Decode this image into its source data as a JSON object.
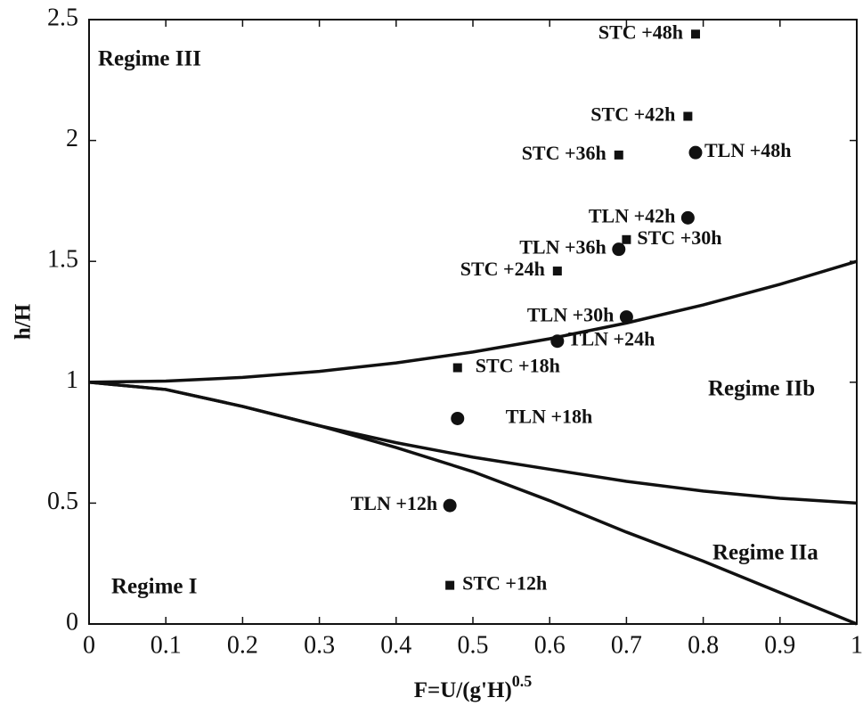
{
  "chart_data": {
    "type": "scatter",
    "xlabel": {
      "text": "F=U/(g'H)",
      "sup": "0.5"
    },
    "ylabel": "h/H",
    "xlim": [
      0,
      1
    ],
    "ylim": [
      0,
      2.5
    ],
    "xticks": [
      0,
      0.1,
      0.2,
      0.3,
      0.4,
      0.5,
      0.6,
      0.7,
      0.8,
      0.9,
      1
    ],
    "yticks": [
      0,
      0.5,
      1,
      1.5,
      2,
      2.5
    ],
    "series": [
      {
        "marker": "square",
        "color": "#111111",
        "x": [
          0.47,
          0.48,
          0.61,
          0.7,
          0.69,
          0.78,
          0.79
        ],
        "values": [
          0.16,
          1.06,
          1.46,
          1.59,
          1.94,
          2.1,
          2.44
        ],
        "labels": [
          "STC +12h",
          "STC +18h",
          "STC +24h",
          "STC +30h",
          "STC +36h",
          "STC +42h",
          "STC +48h"
        ]
      },
      {
        "marker": "circle",
        "color": "#111111",
        "x": [
          0.47,
          0.48,
          0.61,
          0.7,
          0.69,
          0.78,
          0.79
        ],
        "values": [
          0.49,
          0.85,
          1.17,
          1.27,
          1.55,
          1.68,
          1.95
        ],
        "labels": [
          "TLN +12h",
          "TLN +18h",
          "TLN +24h",
          "TLN +30h",
          "TLN +36h",
          "TLN +42h",
          "TLN +48h"
        ]
      }
    ],
    "curves": [
      {
        "color": "#111111",
        "x": [
          0,
          0.1,
          0.2,
          0.3,
          0.4,
          0.5,
          0.6,
          0.7,
          0.8,
          0.9,
          1
        ],
        "values": [
          1,
          1.005,
          1.02,
          1.045,
          1.08,
          1.125,
          1.18,
          1.245,
          1.32,
          1.405,
          1.5
        ]
      },
      {
        "color": "#111111",
        "x": [
          0,
          0.1,
          0.2,
          0.3,
          0.4,
          0.5,
          0.6,
          0.7,
          0.8,
          0.9,
          1
        ],
        "values": [
          1,
          0.97,
          0.9,
          0.82,
          0.75,
          0.69,
          0.64,
          0.59,
          0.55,
          0.52,
          0.5
        ]
      },
      {
        "color": "#111111",
        "x": [
          0,
          0.1,
          0.2,
          0.3,
          0.4,
          0.5,
          0.6,
          0.7,
          0.8,
          0.9,
          1
        ],
        "values": [
          1,
          0.97,
          0.9,
          0.82,
          0.73,
          0.63,
          0.51,
          0.38,
          0.26,
          0.13,
          0
        ]
      }
    ],
    "annotations": [
      "Regime III",
      "Regime IIb",
      "Regime IIa",
      "Regime I"
    ]
  }
}
